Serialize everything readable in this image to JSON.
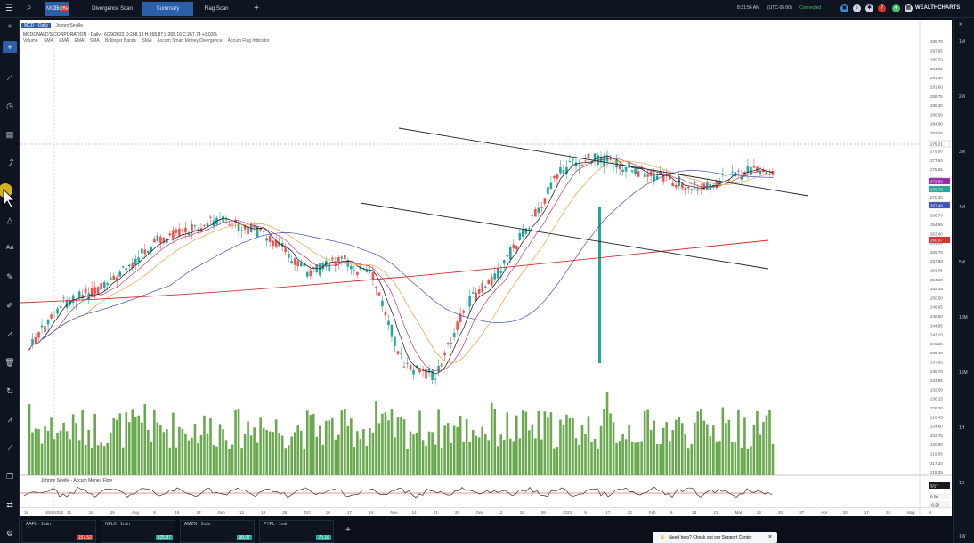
{
  "topbar": {
    "tabs": [
      {
        "label": "MCD"
      },
      {
        "label": "Home"
      },
      {
        "label": "Divergence Scan"
      },
      {
        "label": "Summary"
      },
      {
        "label": "Flag Scan"
      }
    ],
    "add_tab": "+",
    "time": "8:31:56 AM",
    "timezone": "(UTC-05:00)",
    "connection": "Connected",
    "brand": "WEALTHCHARTS"
  },
  "chart_header": {
    "symbol": "MCD · Daily",
    "layout_name": "JohnnySeville",
    "ohlc": "MCDONALD'S CORPORATION · Daily · 6/29/2022 O:268.18 H:268.87 L:265.10 C:267.74 +3.03%",
    "indicators": [
      "Volume",
      "SMA",
      "EMA",
      "EMA",
      "SMA",
      "Bollinger Bands",
      "SMA",
      "Accum Smart Money Divergence",
      "Accum Flag Indicator"
    ]
  },
  "money_flow_label": "Johnny Seville - Accum Money Flow",
  "price_axis": [
    "299.70",
    "297.95",
    "295.70",
    "294.25",
    "293.30",
    "291.60",
    "289.75",
    "288.30",
    "286.60",
    "284.90",
    "283.05",
    "281.20",
    "279.50",
    "277.50",
    "275.65",
    "273.95",
    "272.10",
    "270.30",
    "268.55",
    "266.70",
    "264.85",
    "263.40",
    "261.55",
    "259.75",
    "257.90",
    "256.05",
    "254.20",
    "252.35",
    "250.50",
    "248.65",
    "246.80",
    "244.95",
    "243.10",
    "241.25",
    "239.40",
    "237.55",
    "235.70",
    "233.85",
    "232.00",
    "230.15",
    "228.30",
    "226.45",
    "224.60",
    "222.75",
    "220.90",
    "219.05",
    "217.20",
    "215.35"
  ],
  "price_badges": [
    {
      "value": "279.21",
      "color": "#ffffff",
      "text_color": "#333333"
    },
    {
      "value": "272.59",
      "color": "#9c27b0",
      "text_color": "#ffffff"
    },
    {
      "value": "270.73",
      "color": "#26a69a",
      "text_color": "#ffffff"
    },
    {
      "value": "267.49",
      "color": "#3f51b5",
      "text_color": "#ffffff"
    },
    {
      "value": "260.07",
      "color": "#d32f2f",
      "text_color": "#ffffff"
    }
  ],
  "flow_axis": [
    "3/17",
    "0.50",
    "-0.20"
  ],
  "date_axis": [
    "16",
    "8/29/2022",
    "11",
    "18",
    "25",
    "Aug",
    "8",
    "15",
    "22",
    "Sep",
    "12",
    "19",
    "26",
    "Oct",
    "10",
    "17",
    "24",
    "Nov",
    "14",
    "21",
    "28",
    "Dec",
    "12",
    "19",
    "26",
    "2023",
    "9",
    "17",
    "23",
    "Feb",
    "6",
    "13",
    "21",
    "Mar",
    "13",
    "20",
    "27",
    "Apr",
    "10",
    "17",
    "24",
    "May",
    "8"
  ],
  "right_panel": {
    "timeframes": [
      "1M",
      "2M",
      "3M",
      "4M",
      "5M",
      "10M",
      "15M",
      "1H",
      "1D",
      "1W"
    ]
  },
  "watchlist": [
    {
      "symbol": "AAPL · 1min",
      "price": "157.52",
      "price_color": "#d32f2f"
    },
    {
      "symbol": "NFLX · 1min",
      "price": "325.87",
      "price_color": "#26a69a"
    },
    {
      "symbol": "AMZN · 1min",
      "price": "98.07",
      "price_color": "#26a69a"
    },
    {
      "symbol": "PYPL · 1min",
      "price": "75.16",
      "price_color": "#26a69a"
    }
  ],
  "help_toast": "Need help? Check out our Support Center",
  "colors": {
    "up": "#26a69a",
    "down": "#ef5350",
    "volume": "#6aa84f",
    "accent": "#2b5fa8",
    "sma200": "#d32f2f",
    "sma50": "#3f51b5",
    "ema": "#f09e3b"
  }
}
